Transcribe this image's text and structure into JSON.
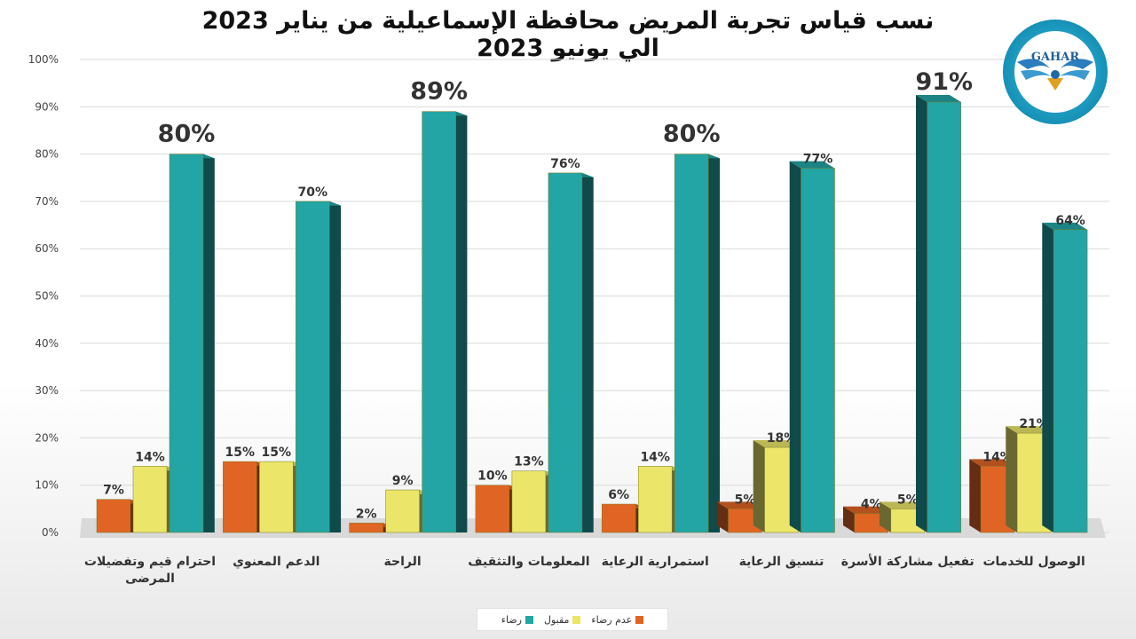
{
  "title": "نسب قياس تجربة المريض محافظة الإسماعيلية من يناير 2023 الي يونيو 2023",
  "logo": {
    "text": "GAHAR",
    "colors": {
      "ring": "#1b9fc4",
      "inner": "#ffffff",
      "wings": "#1f74b5"
    }
  },
  "chart_data": {
    "type": "bar",
    "title": "نسب قياس تجربة المريض محافظة الإسماعيلية من يناير 2023 الي يونيو 2023",
    "xlabel": "",
    "ylabel": "",
    "ylim": [
      0,
      100
    ],
    "yticks": [
      "0%",
      "10%",
      "20%",
      "30%",
      "40%",
      "50%",
      "60%",
      "70%",
      "80%",
      "90%",
      "100%"
    ],
    "grid": true,
    "legend_position": "bottom",
    "categories": [
      [
        "احترام قيم وتفضيلات",
        "المرضى"
      ],
      [
        "الدعم المعنوي"
      ],
      [
        "الراحة"
      ],
      [
        "المعلومات والتثقيف"
      ],
      [
        "استمرارية الرعاية"
      ],
      [
        "تنسيق الرعاية"
      ],
      [
        "تفعيل مشاركة الأسرة"
      ],
      [
        "الوصول للخدمات"
      ]
    ],
    "series": [
      {
        "name": "عدم رضاء",
        "color": "#e06525",
        "values": [
          7,
          15,
          2,
          10,
          6,
          5,
          4,
          14
        ],
        "labels": [
          "7%",
          "15%",
          "2%",
          "10%",
          "6%",
          "5%",
          "4%",
          "14%"
        ]
      },
      {
        "name": "مقبول",
        "color": "#ebe56a",
        "values": [
          14,
          15,
          9,
          13,
          14,
          18,
          5,
          21
        ],
        "labels": [
          "14%",
          "15%",
          "9%",
          "13%",
          "14%",
          "18%",
          "5%",
          "21%"
        ]
      },
      {
        "name": "رضاء",
        "color": "#23a5a5",
        "values": [
          80,
          70,
          89,
          76,
          80,
          77,
          91,
          64
        ],
        "labels": [
          "80%",
          "70%",
          "89%",
          "76%",
          "80%",
          "77%",
          "91%",
          "64%"
        ],
        "emphasis": [
          "large",
          "normal",
          "large",
          "normal",
          "large",
          "normal",
          "large",
          "normal"
        ]
      }
    ]
  }
}
